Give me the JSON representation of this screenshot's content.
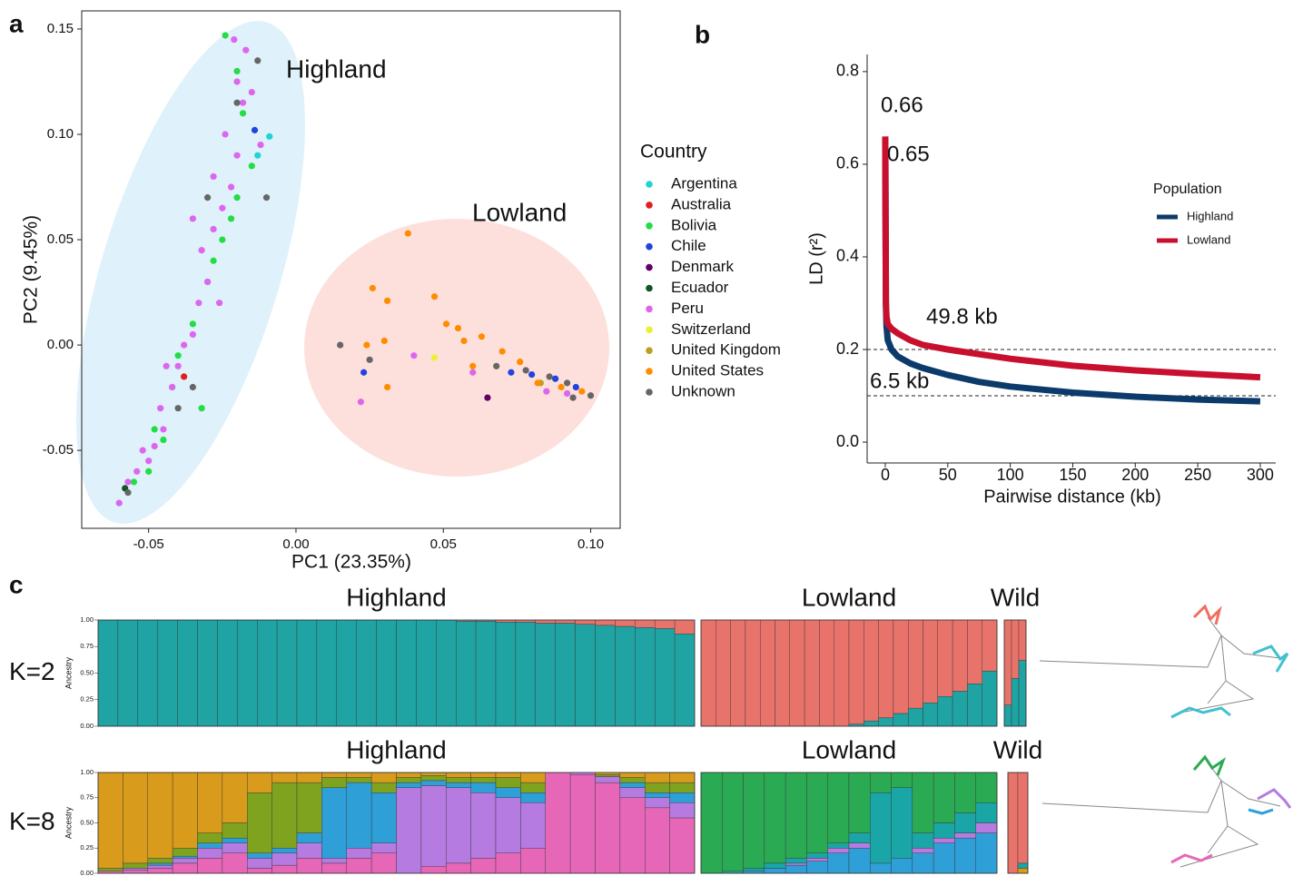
{
  "chart_data": [
    {
      "type": "scatter",
      "panel": "a",
      "xlabel": "PC1 (23.35%)",
      "ylabel": "PC2 (9.45%)",
      "xlim": [
        -0.0727,
        0.11
      ],
      "ylim": [
        -0.087,
        0.1586
      ],
      "xticks": [
        -0.05,
        {
          "value": 0,
          "label": "0.00"
        },
        0.05,
        {
          "value": 0.1,
          "label": "0.10"
        }
      ],
      "yticks": [
        -0.05,
        {
          "value": 0,
          "label": "0.00"
        },
        0.05,
        {
          "value": 0.1,
          "label": "0.10"
        },
        0.15
      ],
      "legend_title": "Country",
      "annotations": [
        {
          "text": "Highland"
        },
        {
          "text": "Lowland"
        }
      ],
      "series": [
        {
          "name": "Argentina",
          "color": "#22d3d3",
          "x": [
            -0.009,
            -0.013
          ],
          "y": [
            0.099,
            0.09
          ]
        },
        {
          "name": "Australia",
          "color": "#e02020",
          "x": [
            -0.038
          ],
          "y": [
            -0.015
          ]
        },
        {
          "name": "Bolivia",
          "color": "#22dd44",
          "x": [
            -0.024,
            -0.02,
            -0.018,
            -0.015,
            -0.02,
            -0.025,
            -0.03,
            -0.035,
            -0.04,
            -0.042,
            -0.048,
            -0.05,
            -0.055,
            -0.045,
            -0.032,
            -0.028,
            -0.022
          ],
          "y": [
            0.147,
            0.13,
            0.11,
            0.085,
            0.07,
            0.05,
            0.03,
            0.01,
            -0.005,
            -0.02,
            -0.04,
            -0.06,
            -0.065,
            -0.045,
            -0.03,
            0.04,
            0.06
          ]
        },
        {
          "name": "Chile",
          "color": "#2244dd",
          "x": [
            -0.014,
            0.023,
            0.073,
            0.08,
            0.088,
            0.095
          ],
          "y": [
            0.102,
            -0.013,
            -0.013,
            -0.014,
            -0.016,
            -0.02
          ]
        },
        {
          "name": "Denmark",
          "color": "#660066",
          "x": [
            0.065
          ],
          "y": [
            -0.025
          ]
        },
        {
          "name": "Ecuador",
          "color": "#115522",
          "x": [
            -0.058
          ],
          "y": [
            -0.068
          ]
        },
        {
          "name": "Peru",
          "color": "#dd66ee",
          "x": [
            -0.06,
            -0.057,
            -0.054,
            -0.05,
            -0.048,
            -0.052,
            -0.045,
            -0.046,
            -0.042,
            -0.04,
            -0.038,
            -0.035,
            -0.033,
            -0.03,
            -0.032,
            -0.028,
            -0.025,
            -0.022,
            -0.028,
            -0.02,
            -0.024,
            -0.018,
            -0.02,
            -0.017,
            -0.021,
            -0.015,
            -0.012,
            -0.035,
            -0.026,
            -0.044,
            0.022,
            0.04,
            0.06,
            0.085,
            0.092
          ],
          "y": [
            -0.075,
            -0.065,
            -0.06,
            -0.055,
            -0.048,
            -0.05,
            -0.04,
            -0.03,
            -0.02,
            -0.01,
            0,
            0.005,
            0.02,
            0.03,
            0.045,
            0.055,
            0.065,
            0.075,
            0.08,
            0.09,
            0.1,
            0.115,
            0.125,
            0.14,
            0.145,
            0.12,
            0.095,
            0.06,
            0.02,
            -0.01,
            -0.027,
            -0.005,
            -0.013,
            -0.022,
            -0.023
          ]
        },
        {
          "name": "Switzerland",
          "color": "#eeee33",
          "x": [
            0.047
          ],
          "y": [
            -0.006
          ]
        },
        {
          "name": "United Kingdom",
          "color": "#bba020",
          "x": [
            0.083
          ],
          "y": [
            -0.018
          ]
        },
        {
          "name": "United States",
          "color": "#ff8c00",
          "x": [
            0.038,
            0.026,
            0.031,
            0.047,
            0.051,
            0.063,
            0.055,
            0.03,
            0.024,
            0.031,
            0.057,
            0.07,
            0.076,
            0.06,
            0.09,
            0.082,
            0.097
          ],
          "y": [
            0.053,
            0.027,
            0.021,
            0.023,
            0.01,
            0.004,
            0.008,
            0.002,
            0,
            -0.02,
            0.002,
            -0.003,
            -0.008,
            -0.01,
            -0.02,
            -0.018,
            -0.022
          ]
        },
        {
          "name": "Unknown",
          "color": "#666666",
          "x": [
            -0.013,
            -0.01,
            -0.02,
            -0.03,
            -0.035,
            -0.04,
            -0.057,
            0.015,
            0.025,
            0.078,
            0.086,
            0.092,
            0.1,
            0.068,
            0.094
          ],
          "y": [
            0.135,
            0.07,
            0.115,
            0.07,
            -0.02,
            -0.03,
            -0.07,
            0,
            -0.007,
            -0.012,
            -0.015,
            -0.018,
            -0.024,
            -0.01,
            -0.025
          ]
        }
      ]
    },
    {
      "type": "line",
      "panel": "b",
      "xlabel": "Pairwise distance (kb)",
      "ylabel": "LD (r²)",
      "xlim": [
        -14.5,
        312.4
      ],
      "ylim": [
        -0.045,
        0.837
      ],
      "xticks": [
        0,
        50,
        100,
        150,
        200,
        250,
        300
      ],
      "yticks": [
        {
          "value": 0,
          "label": "0.0"
        },
        0.2,
        0.4,
        0.6,
        0.8
      ],
      "hlines": [
        0.2,
        0.1
      ],
      "legend_title": "Population",
      "annotations": [
        {
          "text": "0.66",
          "color": "#e8101e"
        },
        {
          "text": "0.65",
          "color": "#1f3b6b"
        },
        {
          "text": "49.8 kb",
          "color": "#e8101e"
        },
        {
          "text": "6.5 kb",
          "color": "#1f3b6b"
        }
      ],
      "series": [
        {
          "name": "Highland",
          "color": "#0b3a6b",
          "x": [
            0,
            0.5,
            1,
            2,
            5,
            10,
            20,
            30,
            50,
            75,
            100,
            150,
            200,
            250,
            300
          ],
          "y": [
            0.65,
            0.3,
            0.25,
            0.22,
            0.2,
            0.185,
            0.17,
            0.16,
            0.145,
            0.13,
            0.12,
            0.107,
            0.098,
            0.092,
            0.088
          ]
        },
        {
          "name": "Lowland",
          "color": "#c8102e",
          "x": [
            0,
            0.5,
            1,
            2,
            5,
            10,
            20,
            30,
            50,
            75,
            100,
            150,
            200,
            250,
            300
          ],
          "y": [
            0.66,
            0.3,
            0.27,
            0.255,
            0.245,
            0.235,
            0.22,
            0.21,
            0.2,
            0.19,
            0.18,
            0.165,
            0.155,
            0.147,
            0.14
          ]
        }
      ]
    },
    {
      "type": "admixture",
      "panel": "c",
      "label": "K=2",
      "ylabel": "Ancestry",
      "ylim": [
        0,
        1
      ],
      "yticks": [
        {
          "value": 0,
          "label": "0.00"
        },
        {
          "value": 0.25,
          "label": "0.25"
        },
        {
          "value": 0.5,
          "label": "0.50"
        },
        {
          "value": 0.75,
          "label": "0.75"
        },
        {
          "value": 1,
          "label": "1.00"
        }
      ],
      "groups": [
        {
          "name": "Highland",
          "series": [
            {
              "color": "#1fa3a3",
              "values": [
                1,
                1,
                1,
                1,
                1,
                1,
                1,
                1,
                1,
                1,
                1,
                1,
                1,
                1,
                1,
                1,
                1,
                1,
                0.99,
                0.99,
                0.98,
                0.98,
                0.97,
                0.97,
                0.96,
                0.95,
                0.94,
                0.93,
                0.92,
                0.87
              ]
            },
            {
              "color": "#e8736b",
              "values": [
                0,
                0,
                0,
                0,
                0,
                0,
                0,
                0,
                0,
                0,
                0,
                0,
                0,
                0,
                0,
                0,
                0,
                0,
                0.01,
                0.01,
                0.02,
                0.02,
                0.03,
                0.03,
                0.04,
                0.05,
                0.06,
                0.07,
                0.08,
                0.13
              ]
            }
          ]
        },
        {
          "name": "Lowland",
          "series": [
            {
              "color": "#1fa3a3",
              "values": [
                0,
                0,
                0,
                0,
                0,
                0,
                0,
                0,
                0,
                0,
                0.02,
                0.05,
                0.08,
                0.12,
                0.17,
                0.22,
                0.28,
                0.33,
                0.4,
                0.52
              ]
            },
            {
              "color": "#e8736b",
              "values": [
                1,
                1,
                1,
                1,
                1,
                1,
                1,
                1,
                1,
                1,
                0.98,
                0.95,
                0.92,
                0.88,
                0.83,
                0.78,
                0.72,
                0.67,
                0.6,
                0.48
              ]
            }
          ]
        },
        {
          "name": "Wild",
          "series": [
            {
              "color": "#1fa3a3",
              "values": [
                0.2,
                0.45,
                0.62
              ]
            },
            {
              "color": "#e8736b",
              "values": [
                0.8,
                0.55,
                0.38
              ]
            }
          ]
        }
      ]
    },
    {
      "type": "admixture",
      "label": "K=8",
      "ylabel": "Ancestry",
      "ylim": [
        0,
        1
      ],
      "yticks": [
        {
          "value": 0,
          "label": "0.00"
        },
        {
          "value": 0.25,
          "label": "0.25"
        },
        {
          "value": 0.5,
          "label": "0.50"
        },
        {
          "value": 0.75,
          "label": "0.75"
        },
        {
          "value": 1,
          "label": "1.00"
        }
      ],
      "groups": [
        {
          "name": "Highland",
          "series": [
            {
              "color": "#e667b8",
              "values": [
                0.02,
                0.03,
                0.05,
                0.1,
                0.15,
                0.2,
                0.05,
                0.08,
                0.15,
                0.1,
                0.15,
                0.2,
                0,
                0.07,
                0.1,
                0.15,
                0.2,
                0.25,
                1,
                0.98,
                0.9,
                0.75,
                0.65,
                0.55
              ]
            },
            {
              "color": "#b57be0",
              "values": [
                0,
                0.02,
                0.03,
                0.05,
                0.1,
                0.1,
                0.1,
                0.12,
                0.15,
                0.05,
                0.1,
                0.1,
                0.85,
                0.8,
                0.75,
                0.65,
                0.55,
                0.45,
                0,
                0.02,
                0.06,
                0.1,
                0.1,
                0.15
              ]
            },
            {
              "color": "#2f9fd8",
              "values": [
                0,
                0,
                0.02,
                0.02,
                0.05,
                0.05,
                0.05,
                0.05,
                0.1,
                0.7,
                0.65,
                0.5,
                0.05,
                0.05,
                0.05,
                0.1,
                0.1,
                0.1,
                0,
                0,
                0,
                0.05,
                0.05,
                0.1
              ]
            },
            {
              "color": "#7fa31f",
              "values": [
                0.03,
                0.05,
                0.05,
                0.08,
                0.1,
                0.15,
                0.6,
                0.65,
                0.5,
                0.1,
                0.05,
                0.1,
                0.05,
                0.05,
                0.05,
                0.05,
                0.1,
                0.1,
                0,
                0,
                0.02,
                0.05,
                0.1,
                0.1
              ]
            },
            {
              "color": "#d89b1c",
              "values": [
                0.95,
                0.9,
                0.85,
                0.75,
                0.6,
                0.5,
                0.2,
                0.1,
                0.1,
                0.05,
                0.05,
                0.1,
                0.05,
                0.03,
                0.05,
                0.05,
                0.05,
                0.1,
                0,
                0,
                0.02,
                0.05,
                0.1,
                0.1
              ]
            }
          ]
        },
        {
          "name": "Lowland",
          "series": [
            {
              "color": "#2f9fd8",
              "values": [
                0,
                0,
                0.02,
                0.05,
                0.08,
                0.12,
                0.2,
                0.25,
                0.1,
                0.15,
                0.2,
                0.3,
                0.35,
                0.4
              ]
            },
            {
              "color": "#b57be0",
              "values": [
                0,
                0,
                0,
                0,
                0.02,
                0.03,
                0.05,
                0.05,
                0,
                0,
                0.05,
                0.05,
                0.05,
                0.1
              ]
            },
            {
              "color": "#1aa6a6",
              "values": [
                0,
                0.02,
                0.03,
                0.05,
                0.05,
                0.05,
                0.05,
                0.1,
                0.7,
                0.7,
                0.15,
                0.15,
                0.2,
                0.2
              ]
            },
            {
              "color": "#2baa54",
              "values": [
                1,
                0.98,
                0.95,
                0.9,
                0.85,
                0.8,
                0.7,
                0.6,
                0.2,
                0.15,
                0.6,
                0.5,
                0.4,
                0.3
              ]
            }
          ]
        },
        {
          "name": "Wild",
          "series": [
            {
              "color": "#d89b1c",
              "values": [
                0,
                0.05
              ]
            },
            {
              "color": "#1aa6a6",
              "values": [
                0,
                0.05
              ]
            },
            {
              "color": "#e8736b",
              "values": [
                1,
                0.9
              ]
            }
          ]
        }
      ]
    }
  ]
}
